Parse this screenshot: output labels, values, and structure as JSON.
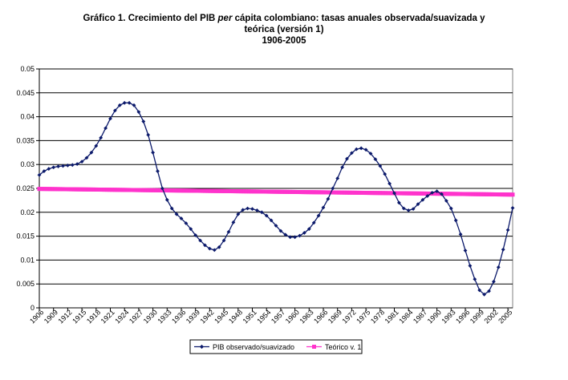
{
  "chart_data": {
    "type": "line",
    "title_line1_pre": "Gráfico 1. Crecimiento del PIB ",
    "title_line1_italic": "per",
    "title_line1_post": " cápita colombiano: tasas anuales observada/suavizada y",
    "title_line2": "teórica (versión 1)",
    "title_line3": "1906-2005",
    "xlabel": "",
    "ylabel": "",
    "ylim": [
      0,
      0.05
    ],
    "yticks": [
      "0",
      "0.005",
      "0.01",
      "0.015",
      "0.02",
      "0.025",
      "0.03",
      "0.035",
      "0.04",
      "0.045",
      "0.05"
    ],
    "xticks": [
      "1906",
      "1909",
      "1912",
      "1915",
      "1918",
      "1921",
      "1924",
      "1927",
      "1930",
      "1933",
      "1936",
      "1939",
      "1942",
      "1945",
      "1948",
      "1951",
      "1954",
      "1957",
      "1960",
      "1963",
      "1966",
      "1969",
      "1972",
      "1975",
      "1978",
      "1981",
      "1984",
      "1987",
      "1990",
      "1993",
      "1996",
      "1999",
      "2002",
      "2005"
    ],
    "xrange": [
      1906,
      2006
    ],
    "grid": "horizontal",
    "legend_position": "bottom",
    "series": [
      {
        "name": "PIB observado/suavizado",
        "color": "#0c1a6b",
        "marker": "diamond",
        "x": [
          1906,
          1907,
          1908,
          1909,
          1910,
          1911,
          1912,
          1913,
          1914,
          1915,
          1916,
          1917,
          1918,
          1919,
          1920,
          1921,
          1922,
          1923,
          1924,
          1925,
          1926,
          1927,
          1928,
          1929,
          1930,
          1931,
          1932,
          1933,
          1934,
          1935,
          1936,
          1937,
          1938,
          1939,
          1940,
          1941,
          1942,
          1943,
          1944,
          1945,
          1946,
          1947,
          1948,
          1949,
          1950,
          1951,
          1952,
          1953,
          1954,
          1955,
          1956,
          1957,
          1958,
          1959,
          1960,
          1961,
          1962,
          1963,
          1964,
          1965,
          1966,
          1967,
          1968,
          1969,
          1970,
          1971,
          1972,
          1973,
          1974,
          1975,
          1976,
          1977,
          1978,
          1979,
          1980,
          1981,
          1982,
          1983,
          1984,
          1985,
          1986,
          1987,
          1988,
          1989,
          1990,
          1991,
          1992,
          1993,
          1994,
          1995,
          1996,
          1997,
          1998,
          1999,
          2000,
          2001,
          2002,
          2003,
          2004,
          2005,
          2006
        ],
        "values": [
          0.0278,
          0.0286,
          0.0291,
          0.0294,
          0.0296,
          0.0297,
          0.0298,
          0.0299,
          0.0301,
          0.0306,
          0.0314,
          0.0325,
          0.0339,
          0.0356,
          0.0376,
          0.0396,
          0.0413,
          0.0424,
          0.0429,
          0.0429,
          0.0424,
          0.041,
          0.039,
          0.0362,
          0.0325,
          0.0286,
          0.025,
          0.0226,
          0.0208,
          0.0196,
          0.0187,
          0.0177,
          0.0165,
          0.0152,
          0.0141,
          0.0131,
          0.0124,
          0.0121,
          0.0127,
          0.0141,
          0.0159,
          0.0179,
          0.0196,
          0.0205,
          0.0208,
          0.0207,
          0.0204,
          0.02,
          0.0193,
          0.0183,
          0.0172,
          0.0161,
          0.0153,
          0.0148,
          0.0148,
          0.0151,
          0.0157,
          0.0165,
          0.0178,
          0.0193,
          0.021,
          0.0228,
          0.025,
          0.0271,
          0.0294,
          0.0312,
          0.0324,
          0.0332,
          0.0334,
          0.0331,
          0.0323,
          0.0311,
          0.0297,
          0.028,
          0.026,
          0.024,
          0.022,
          0.0208,
          0.0204,
          0.0207,
          0.0217,
          0.0226,
          0.0234,
          0.0241,
          0.0244,
          0.0238,
          0.0224,
          0.0208,
          0.0183,
          0.0154,
          0.012,
          0.0088,
          0.006,
          0.0037,
          0.0028,
          0.0035,
          0.0055,
          0.0085,
          0.0122,
          0.0163,
          0.0209
        ]
      },
      {
        "name": "Teórico v. 1",
        "color": "#ff33cc",
        "marker": "square",
        "x_start": 1906,
        "x_end": 2006,
        "y_start": 0.0249,
        "y_end": 0.0237
      }
    ]
  }
}
